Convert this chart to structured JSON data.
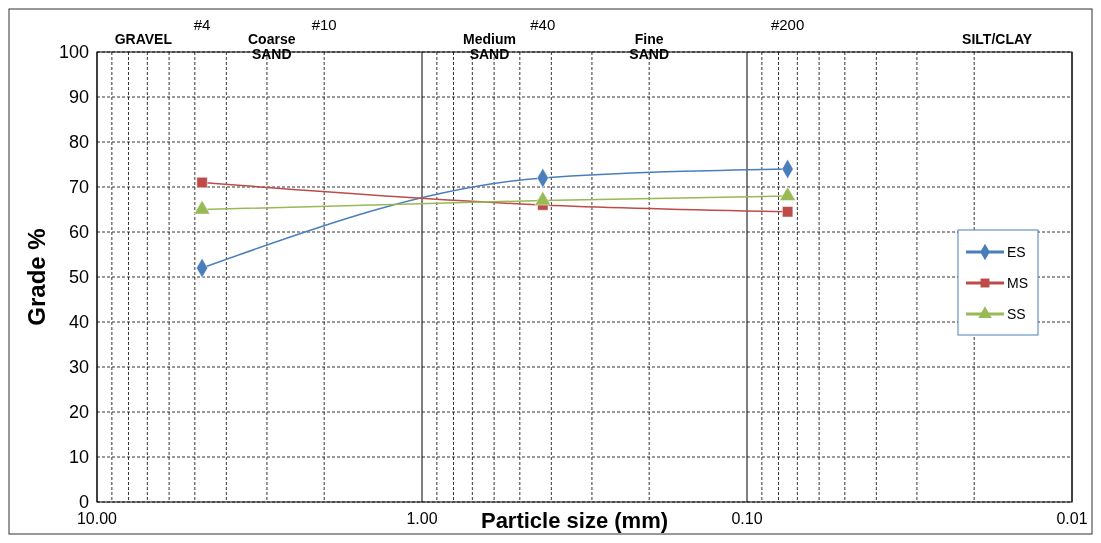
{
  "chart_data": {
    "type": "line",
    "xlabel": "Particle size (mm)",
    "ylabel": "Grade %",
    "log": "x",
    "xlim": [
      10,
      0.01
    ],
    "xticks": [
      {
        "value": 10,
        "label": "10.00"
      },
      {
        "value": 1,
        "label": "1.00"
      },
      {
        "value": 0.1,
        "label": "0.10"
      },
      {
        "value": 0.01,
        "label": "0.01"
      }
    ],
    "ylim": [
      0,
      100
    ],
    "yticks": [
      0,
      10,
      20,
      30,
      40,
      50,
      60,
      70,
      80,
      90,
      100
    ],
    "grid": true,
    "legend": "right",
    "marker": "diamond",
    "line_style": "solid",
    "x": [
      4.75,
      0.425,
      0.075
    ],
    "series": [
      {
        "name": "ES",
        "color": "#4a7ebb",
        "marker": "diamond",
        "values": [
          52,
          72,
          74
        ]
      },
      {
        "name": "MS",
        "color": "#be4b48",
        "marker": "square",
        "values": [
          71,
          66,
          64.5
        ]
      },
      {
        "name": "SS",
        "color": "#98b954",
        "marker": "triangle",
        "values": [
          65,
          67,
          68
        ]
      }
    ],
    "annotations": [
      "GRAVEL",
      "#4",
      "Coarse\nSAND",
      "#10",
      "Medium\nSAND",
      "#40",
      "Fine\nSAND",
      "#200",
      "SILT/CLAY"
    ]
  }
}
